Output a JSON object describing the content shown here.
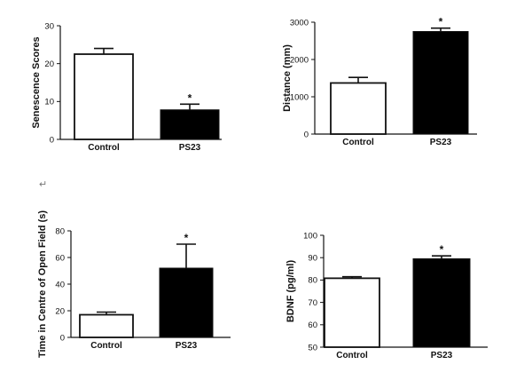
{
  "paragraph_mark": "↵",
  "chart_data": [
    {
      "type": "bar",
      "title": "",
      "xlabel": "",
      "ylabel": "Senescence Scores",
      "categories": [
        "Control",
        "PS23"
      ],
      "values": [
        22.5,
        7.8
      ],
      "errors": [
        1.5,
        1.5
      ],
      "bar_colors": [
        "#ffffff",
        "#000000"
      ],
      "significance": [
        "",
        "*"
      ],
      "ylim": [
        0,
        30
      ],
      "yticks": [
        0,
        10,
        20,
        30
      ],
      "grid": false
    },
    {
      "type": "bar",
      "title": "",
      "xlabel": "",
      "ylabel": "Distance (mm)",
      "categories": [
        "Control",
        "PS23"
      ],
      "values": [
        1370,
        2750
      ],
      "errors": [
        150,
        90
      ],
      "bar_colors": [
        "#ffffff",
        "#000000"
      ],
      "significance": [
        "",
        "*"
      ],
      "ylim": [
        0,
        3000
      ],
      "yticks": [
        0,
        1000,
        2000,
        3000
      ],
      "grid": false
    },
    {
      "type": "bar",
      "title": "",
      "xlabel": "",
      "ylabel": "Time in Centre of Open Field (s)",
      "categories": [
        "Control",
        "PS23"
      ],
      "values": [
        17,
        52
      ],
      "errors": [
        2,
        18
      ],
      "bar_colors": [
        "#ffffff",
        "#000000"
      ],
      "significance": [
        "",
        "*"
      ],
      "ylim": [
        0,
        80
      ],
      "yticks": [
        0,
        20,
        40,
        60,
        80
      ],
      "grid": false
    },
    {
      "type": "bar",
      "title": "",
      "xlabel": "",
      "ylabel": "BDNF (pg/ml)",
      "categories": [
        "Control",
        "PS23"
      ],
      "values": [
        80.8,
        89.5
      ],
      "errors": [
        0.7,
        1.3
      ],
      "bar_colors": [
        "#ffffff",
        "#000000"
      ],
      "significance": [
        "",
        "*"
      ],
      "ylim": [
        50,
        100
      ],
      "yticks": [
        50,
        60,
        70,
        80,
        90,
        100
      ],
      "grid": false
    }
  ]
}
